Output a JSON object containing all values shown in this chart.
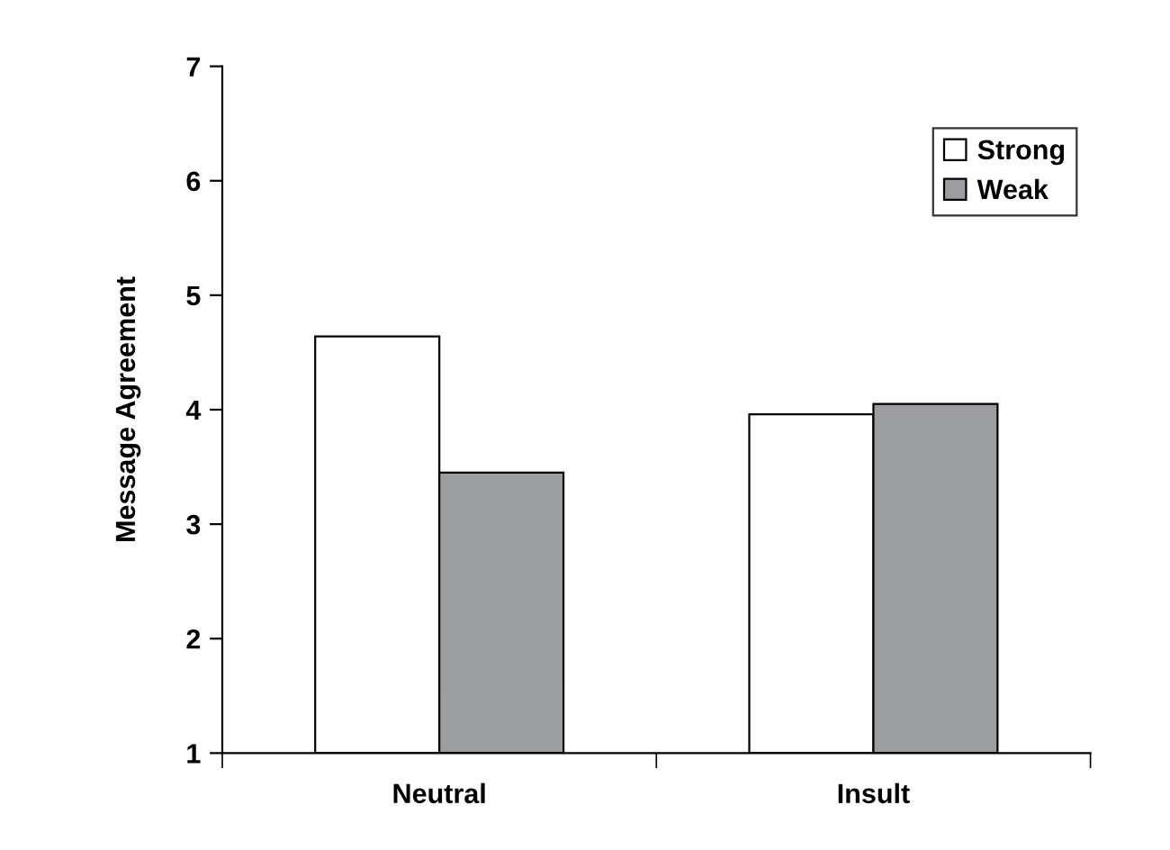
{
  "chart_data": {
    "type": "bar",
    "ylabel": "Message Agreement",
    "categories": [
      "Neutral",
      "Insult"
    ],
    "series": [
      {
        "name": "Strong",
        "color": "#ffffff",
        "values": [
          4.64,
          3.96
        ]
      },
      {
        "name": "Weak",
        "color": "#9c9da1",
        "values": [
          3.45,
          4.05
        ]
      }
    ],
    "ylim": [
      1,
      7
    ],
    "yticks": [
      1,
      2,
      3,
      4,
      5,
      6,
      7
    ],
    "grid": false,
    "legend": "top right"
  }
}
